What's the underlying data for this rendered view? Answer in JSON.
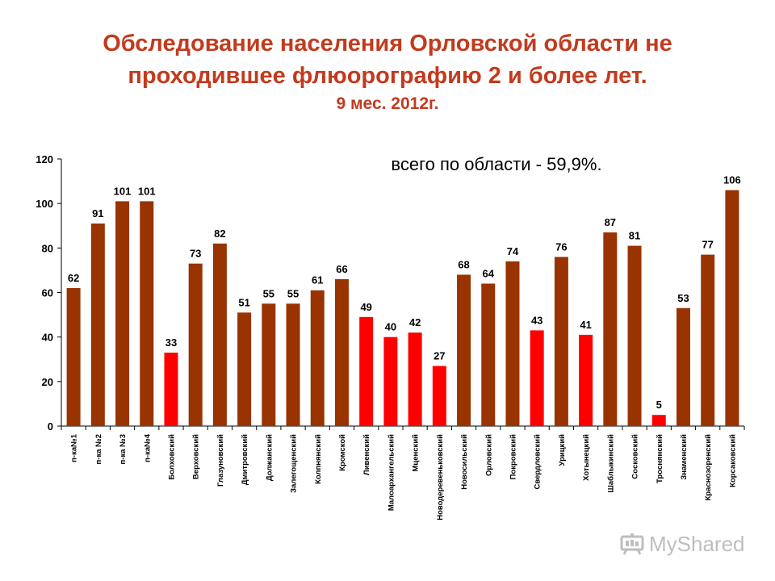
{
  "header": {
    "title_line1": "Обследование населения Орловской области не",
    "title_line2": "проходившее флюорографию 2 и более лет.",
    "subtitle": "9 мес. 2012г."
  },
  "watermark": {
    "text": "MyShared",
    "icon": "presentation-board-icon"
  },
  "colors": {
    "normal_bar": "#993300",
    "highlight_bar": "#ff0000",
    "title": "#c33a1d"
  },
  "chart_data": {
    "type": "bar",
    "title": "Обследование населения Орловской области не проходившее флюорографию 2 и более лет.",
    "subtitle": "9 мес. 2012г.",
    "annotation": "всего по области - 59,9%.",
    "xlabel": "",
    "ylabel": "",
    "ylim": [
      0,
      120
    ],
    "yticks": [
      0,
      20,
      40,
      60,
      80,
      100,
      120
    ],
    "grid": false,
    "legend": "none",
    "categories": [
      "п-ка№1",
      "п-ка №2",
      "п-ка №3",
      "п-ка№4",
      "Болховский",
      "Верховский",
      "Глазуновский",
      "Дмитровский",
      "Должанский",
      "Залегощенский",
      "Колпнянский",
      "Кромской",
      "Ливенский",
      "Малоархангельский",
      "Мценский",
      "Новодеревеньковский",
      "Новосильский",
      "Орловский",
      "Покровский",
      "Свердловский",
      "Урицкий",
      "Хотынецкий",
      "Шаблыкинский",
      "Сосковский",
      "Троснянский",
      "Знаменский",
      "Краснозоренский",
      "Корсаковский"
    ],
    "values": [
      62,
      91,
      101,
      101,
      33,
      73,
      82,
      51,
      55,
      55,
      61,
      66,
      49,
      40,
      42,
      27,
      68,
      64,
      74,
      43,
      76,
      41,
      87,
      81,
      5,
      53,
      77,
      106
    ],
    "value_labels": [
      "62",
      "91",
      "101",
      "101",
      "33",
      "73",
      "82",
      "51",
      "55",
      "55",
      "61",
      "66",
      "49",
      "40",
      "42",
      "27",
      "68",
      "64",
      "74",
      "43",
      "76",
      "41",
      "87",
      "81",
      "5",
      "53",
      "77",
      "106"
    ],
    "highlighted": [
      false,
      false,
      false,
      false,
      true,
      false,
      false,
      false,
      false,
      false,
      false,
      false,
      true,
      true,
      true,
      true,
      false,
      false,
      false,
      true,
      false,
      true,
      false,
      false,
      true,
      false,
      false,
      false
    ]
  }
}
